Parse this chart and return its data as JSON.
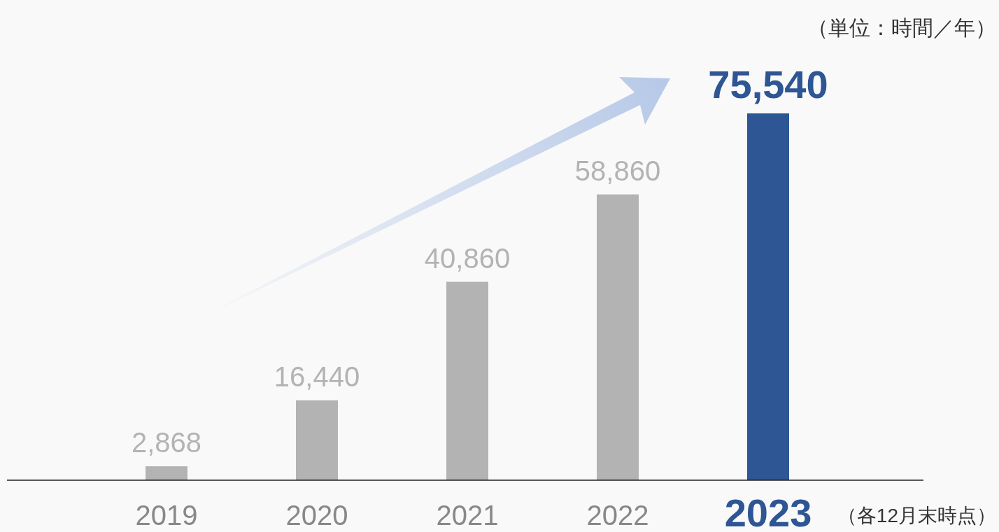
{
  "chart_data": {
    "type": "bar",
    "categories": [
      "2019",
      "2020",
      "2021",
      "2022",
      "2023"
    ],
    "values": [
      2868,
      16440,
      40860,
      58860,
      75540
    ],
    "colors": [
      "#b3b3b3",
      "#b3b3b3",
      "#b3b3b3",
      "#b3b3b3",
      "#2e5594"
    ],
    "value_labels": [
      "2,868",
      "16,440",
      "40,860",
      "58,860",
      "75,540"
    ],
    "annotations": [
      "（単位：時間／年）",
      "（各12月末時点）"
    ]
  }
}
